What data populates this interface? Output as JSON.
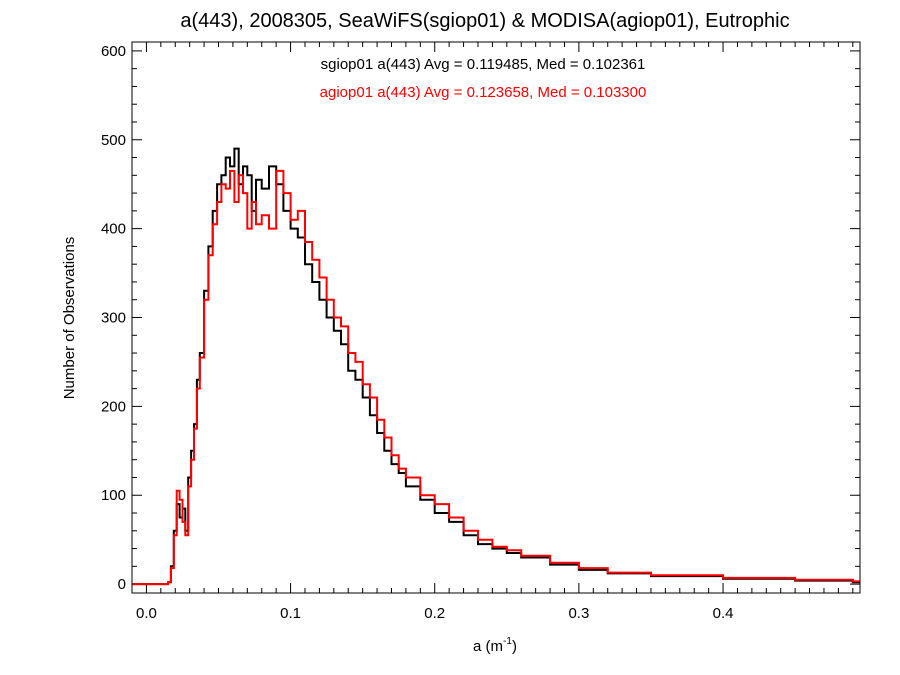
{
  "chart_data": {
    "type": "line",
    "step": true,
    "title": "a(443), 2008305, SeaWiFS(sgiop01) & MODISA(agiop01), Eutrophic",
    "xlabel_base": "a (m",
    "xlabel_sup": "-1",
    "xlabel_tail": ")",
    "ylabel": "Number of Observations",
    "xlim": [
      -0.01,
      0.495
    ],
    "ylim": [
      -10,
      610
    ],
    "xticks": [
      0.0,
      0.1,
      0.2,
      0.3,
      0.4
    ],
    "xtick_labels": [
      "0.0",
      "0.1",
      "0.2",
      "0.3",
      "0.4"
    ],
    "yticks": [
      0,
      100,
      200,
      300,
      400,
      500,
      600
    ],
    "ytick_labels": [
      "0",
      "100",
      "200",
      "300",
      "400",
      "500",
      "600"
    ],
    "grid": false,
    "legend_placement": "top-center",
    "series": [
      {
        "name": "sgiop01 a(443) Avg = 0.119485, Med = 0.102361",
        "color": "#000000",
        "x": [
          -0.01,
          0.0,
          0.01,
          0.015,
          0.017,
          0.019,
          0.021,
          0.023,
          0.025,
          0.027,
          0.029,
          0.031,
          0.033,
          0.035,
          0.037,
          0.04,
          0.043,
          0.046,
          0.049,
          0.052,
          0.055,
          0.058,
          0.061,
          0.064,
          0.067,
          0.07,
          0.073,
          0.076,
          0.08,
          0.085,
          0.09,
          0.095,
          0.1,
          0.105,
          0.11,
          0.115,
          0.12,
          0.125,
          0.13,
          0.135,
          0.14,
          0.145,
          0.15,
          0.155,
          0.16,
          0.165,
          0.17,
          0.175,
          0.18,
          0.19,
          0.2,
          0.21,
          0.22,
          0.23,
          0.24,
          0.25,
          0.26,
          0.28,
          0.3,
          0.32,
          0.35,
          0.4,
          0.45,
          0.49
        ],
        "values": [
          0,
          0,
          0,
          2,
          20,
          60,
          90,
          75,
          85,
          60,
          120,
          150,
          180,
          230,
          260,
          330,
          380,
          420,
          450,
          460,
          480,
          470,
          490,
          450,
          470,
          460,
          420,
          455,
          445,
          470,
          450,
          420,
          400,
          390,
          360,
          340,
          320,
          300,
          285,
          270,
          240,
          230,
          210,
          190,
          170,
          150,
          135,
          125,
          110,
          95,
          80,
          70,
          55,
          45,
          40,
          35,
          30,
          22,
          16,
          12,
          9,
          6,
          4,
          2
        ]
      },
      {
        "name": "agiop01 a(443) Avg = 0.123658, Med = 0.103300",
        "color": "#ff0000",
        "x": [
          -0.01,
          0.0,
          0.01,
          0.015,
          0.017,
          0.019,
          0.021,
          0.023,
          0.025,
          0.027,
          0.029,
          0.031,
          0.033,
          0.035,
          0.037,
          0.04,
          0.043,
          0.046,
          0.049,
          0.052,
          0.055,
          0.058,
          0.061,
          0.064,
          0.067,
          0.07,
          0.073,
          0.076,
          0.08,
          0.085,
          0.09,
          0.095,
          0.1,
          0.105,
          0.11,
          0.115,
          0.12,
          0.125,
          0.13,
          0.135,
          0.14,
          0.145,
          0.15,
          0.155,
          0.16,
          0.165,
          0.17,
          0.175,
          0.18,
          0.19,
          0.2,
          0.21,
          0.22,
          0.23,
          0.24,
          0.25,
          0.26,
          0.28,
          0.3,
          0.32,
          0.35,
          0.4,
          0.45,
          0.49
        ],
        "values": [
          0,
          0,
          0,
          2,
          18,
          55,
          105,
          95,
          70,
          55,
          110,
          140,
          175,
          220,
          255,
          320,
          370,
          405,
          430,
          450,
          445,
          465,
          430,
          460,
          440,
          400,
          430,
          405,
          415,
          400,
          465,
          440,
          410,
          420,
          385,
          365,
          345,
          320,
          300,
          290,
          260,
          250,
          225,
          210,
          185,
          165,
          145,
          130,
          120,
          100,
          90,
          75,
          60,
          50,
          42,
          38,
          32,
          24,
          18,
          13,
          10,
          7,
          5,
          3
        ]
      }
    ]
  }
}
